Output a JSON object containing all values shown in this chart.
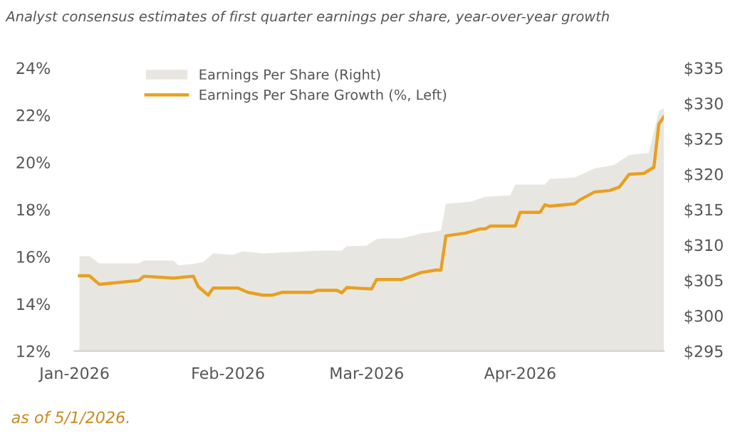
{
  "chart_data": {
    "type": "area",
    "title": "Analyst consensus estimates of first quarter earnings per share, year-over-year growth",
    "annotations": [
      "as of 5/1/2026."
    ],
    "xlim": [
      "2026-01-01",
      "2026-04-30"
    ],
    "xticks": [
      {
        "value": "2026-01-01",
        "label": "Jan-2026"
      },
      {
        "value": "2026-02-01",
        "label": "Feb-2026"
      },
      {
        "value": "2026-03-01",
        "label": "Mar-2026"
      },
      {
        "value": "2026-04-01",
        "label": "Apr-2026"
      }
    ],
    "ylim": [
      12,
      24
    ],
    "yticks": [
      {
        "value": 12,
        "label": "12%"
      },
      {
        "value": 14,
        "label": "14%"
      },
      {
        "value": 16,
        "label": "16%"
      },
      {
        "value": 18,
        "label": "18%"
      },
      {
        "value": 20,
        "label": "20%"
      },
      {
        "value": 22,
        "label": "22%"
      },
      {
        "value": 24,
        "label": "24%"
      }
    ],
    "y2lim": [
      295,
      335
    ],
    "y2ticks": [
      {
        "value": 295,
        "label": "$295"
      },
      {
        "value": 300,
        "label": "$300"
      },
      {
        "value": 305,
        "label": "$305"
      },
      {
        "value": 310,
        "label": "$310"
      },
      {
        "value": 315,
        "label": "$315"
      },
      {
        "value": 320,
        "label": "$320"
      },
      {
        "value": 325,
        "label": "$325"
      },
      {
        "value": 330,
        "label": "$330"
      },
      {
        "value": 335,
        "label": "$335"
      }
    ],
    "grid": false,
    "legend": "top left",
    "series": [
      {
        "name": "Earnings Per Share (Right)",
        "axis": "y2",
        "color": "#e8e6e1",
        "x": [
          "2026-01-02",
          "2026-01-04",
          "2026-01-06",
          "2026-01-14",
          "2026-01-15",
          "2026-01-21",
          "2026-01-22",
          "2026-01-25",
          "2026-01-27",
          "2026-01-29",
          "2026-02-02",
          "2026-02-04",
          "2026-02-08",
          "2026-02-14",
          "2026-02-20",
          "2026-02-24",
          "2026-02-25",
          "2026-03-01",
          "2026-03-03",
          "2026-03-04",
          "2026-03-08",
          "2026-03-12",
          "2026-03-16",
          "2026-03-17",
          "2026-03-22",
          "2026-03-25",
          "2026-03-30",
          "2026-03-31",
          "2026-04-06",
          "2026-04-07",
          "2026-04-12",
          "2026-04-16",
          "2026-04-20",
          "2026-04-23",
          "2026-04-27",
          "2026-04-29",
          "2026-04-30"
        ],
        "values": [
          308.4,
          308.4,
          307.4,
          307.4,
          307.8,
          307.8,
          307.1,
          307.3,
          307.6,
          308.8,
          308.6,
          309.1,
          308.8,
          309.0,
          309.2,
          309.2,
          309.8,
          309.9,
          310.8,
          310.9,
          310.9,
          311.6,
          312.0,
          315.8,
          316.1,
          316.8,
          317.0,
          318.5,
          318.5,
          319.3,
          319.5,
          320.8,
          321.3,
          322.7,
          323.0,
          328.9,
          329.3
        ]
      },
      {
        "name": "Earnings Per Share Growth (%, Left)",
        "type": "line",
        "axis": "y",
        "color": "#e8a020",
        "x": [
          "2026-01-02",
          "2026-01-04",
          "2026-01-06",
          "2026-01-14",
          "2026-01-15",
          "2026-01-21",
          "2026-01-25",
          "2026-01-26",
          "2026-01-28",
          "2026-01-29",
          "2026-02-03",
          "2026-02-05",
          "2026-02-08",
          "2026-02-10",
          "2026-02-12",
          "2026-02-18",
          "2026-02-19",
          "2026-02-23",
          "2026-02-24",
          "2026-02-25",
          "2026-03-02",
          "2026-03-03",
          "2026-03-08",
          "2026-03-10",
          "2026-03-12",
          "2026-03-15",
          "2026-03-16",
          "2026-03-17",
          "2026-03-21",
          "2026-03-24",
          "2026-03-25",
          "2026-03-26",
          "2026-03-31",
          "2026-04-01",
          "2026-04-05",
          "2026-04-06",
          "2026-04-07",
          "2026-04-12",
          "2026-04-13",
          "2026-04-16",
          "2026-04-19",
          "2026-04-21",
          "2026-04-23",
          "2026-04-26",
          "2026-04-28",
          "2026-04-29",
          "2026-04-30"
        ],
        "values": [
          15.19,
          15.19,
          14.83,
          14.99,
          15.17,
          15.09,
          15.17,
          14.73,
          14.37,
          14.67,
          14.67,
          14.49,
          14.37,
          14.37,
          14.49,
          14.49,
          14.57,
          14.57,
          14.47,
          14.69,
          14.63,
          15.03,
          15.03,
          15.17,
          15.33,
          15.43,
          15.43,
          16.88,
          17.0,
          17.18,
          17.18,
          17.3,
          17.3,
          17.88,
          17.88,
          18.2,
          18.14,
          18.24,
          18.4,
          18.74,
          18.8,
          18.94,
          19.49,
          19.53,
          19.79,
          21.62,
          21.92
        ]
      }
    ]
  }
}
